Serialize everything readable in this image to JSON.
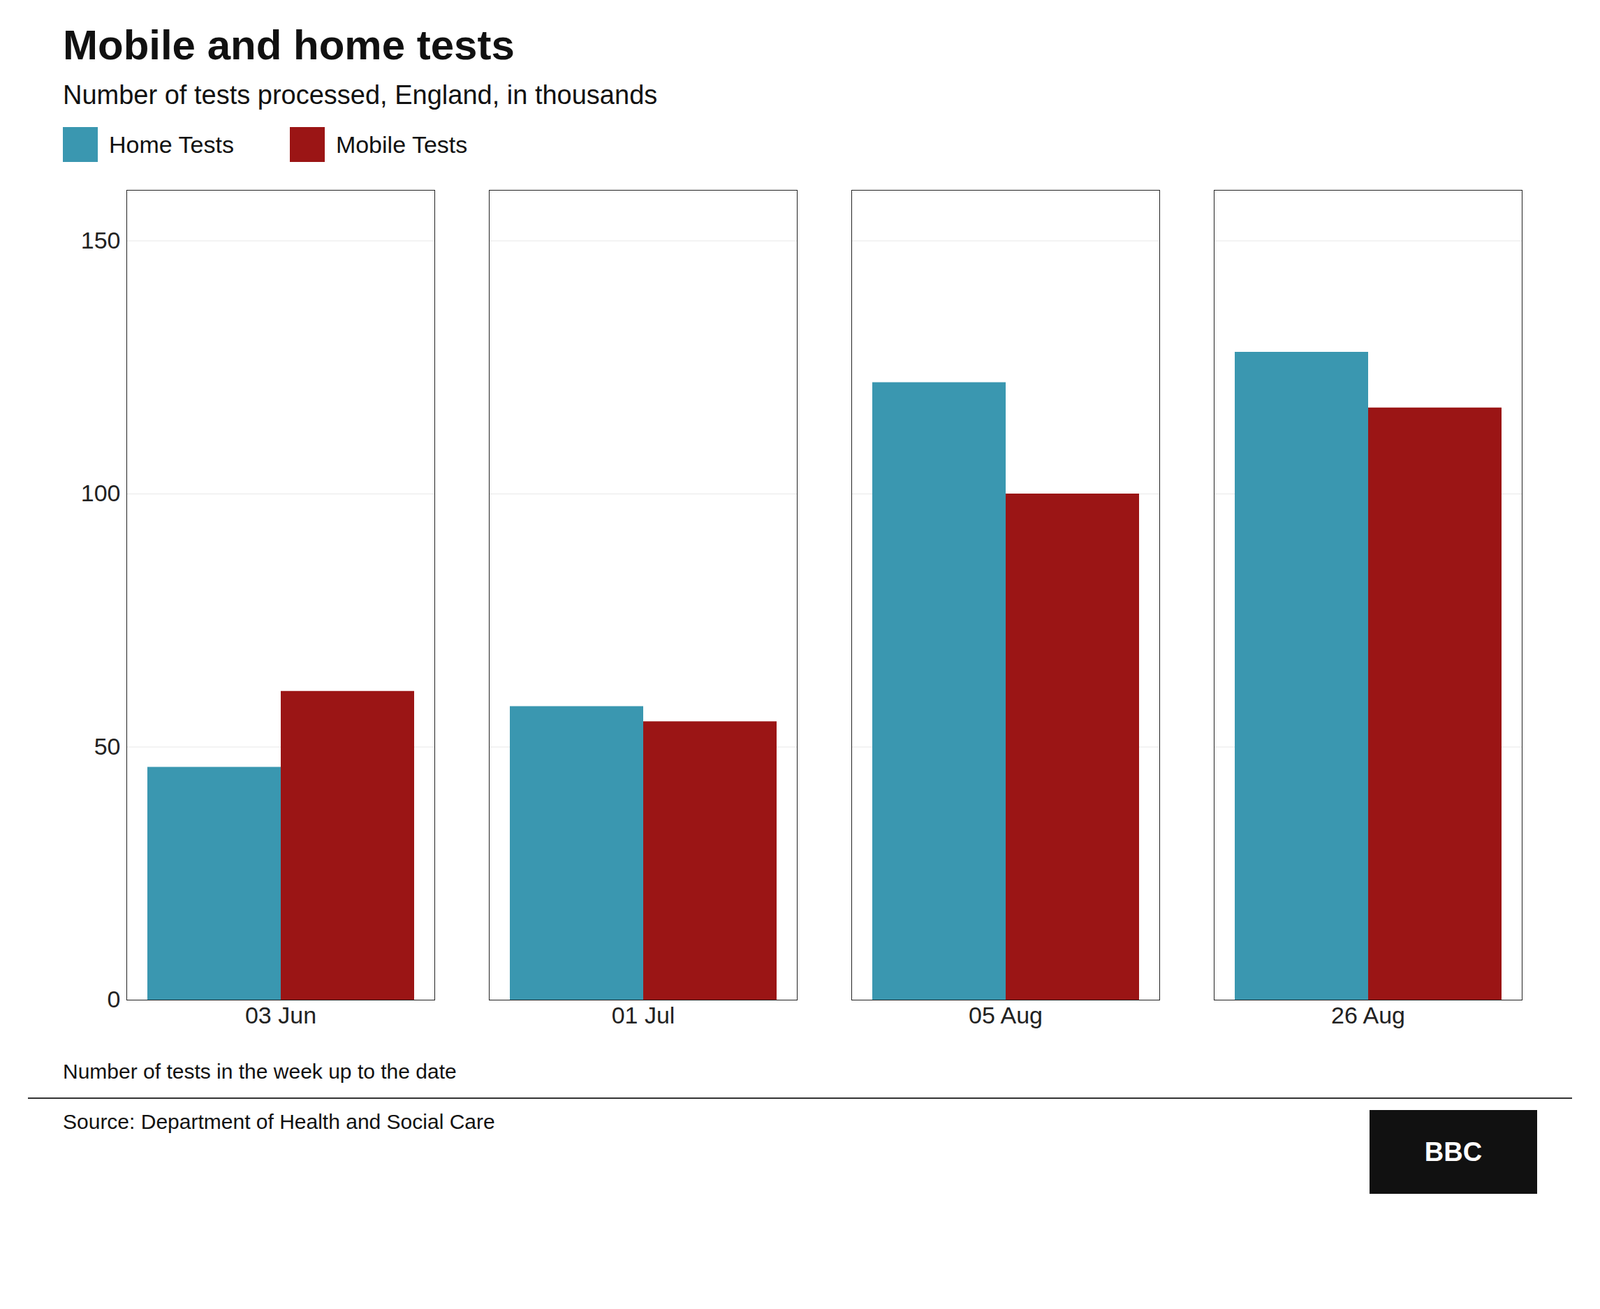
{
  "chart_data": {
    "type": "bar",
    "title": "Mobile and home tests",
    "subtitle": "Number of tests processed, England, in thousands",
    "categories": [
      "03 Jun",
      "01 Jul",
      "05 Aug",
      "26 Aug"
    ],
    "series": [
      {
        "name": "Home Tests",
        "color": "#3a97b0",
        "values": [
          46,
          58,
          122,
          128
        ]
      },
      {
        "name": "Mobile Tests",
        "color": "#9b1515",
        "values": [
          61,
          55,
          100,
          117
        ]
      }
    ],
    "ylim": [
      0,
      160
    ],
    "yticks": [
      0,
      50,
      100,
      150
    ],
    "grid": true,
    "legend": "top",
    "footnote": "Number of tests in the week up to the date",
    "source": "Source: Department of Health and Social Care",
    "logo": "BBC"
  }
}
